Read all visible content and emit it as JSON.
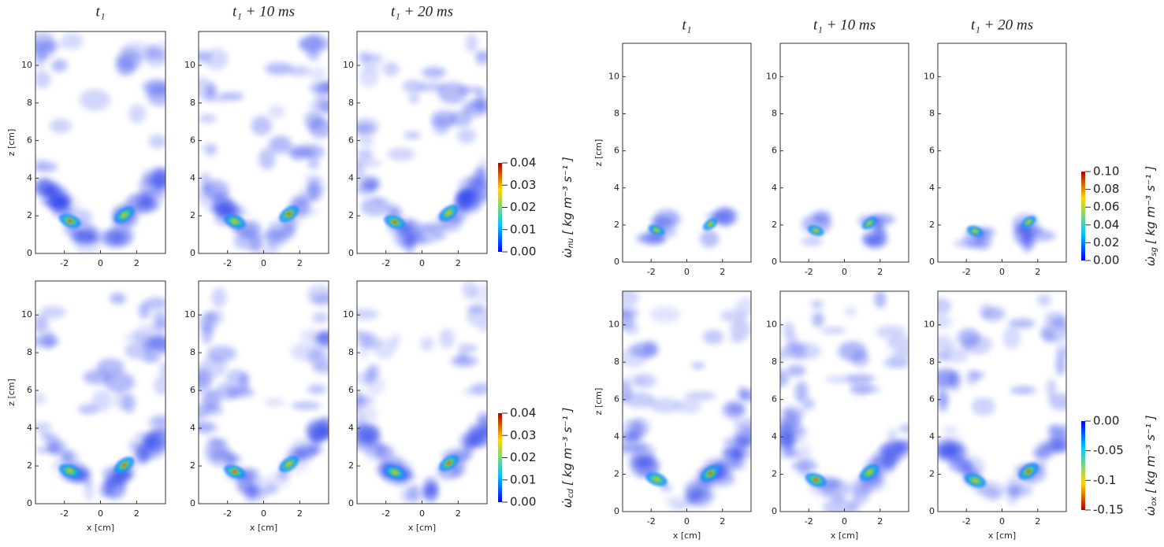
{
  "chart_data": [
    {
      "type": "heatmap",
      "panel_titles": [
        "t₁",
        "t₁ + 10 ms",
        "t₁ + 20 ms"
      ],
      "ylabel": "z [cm]",
      "xlim": [
        -3.6,
        3.6
      ],
      "ylim": [
        0,
        11.8
      ],
      "xticks": [
        -2,
        0,
        2
      ],
      "yticks": [
        0,
        2,
        4,
        6,
        8,
        10
      ],
      "colorbar": {
        "symbol": "ω̇",
        "subscript": "nu",
        "unit": "[ kg m⁻³ s⁻¹ ]",
        "lim": [
          0,
          0.04
        ],
        "ticks": [
          0.04,
          0.03,
          0.02,
          0.01,
          {
            "value": 0,
            "label": "0.00"
          }
        ],
        "reversed": false
      }
    },
    {
      "type": "heatmap",
      "xlabel": "x [cm]",
      "ylabel": "z [cm]",
      "xlim": [
        -3.6,
        3.6
      ],
      "ylim": [
        0,
        11.8
      ],
      "xticks": [
        -2,
        0,
        2
      ],
      "yticks": [
        0,
        2,
        4,
        6,
        8,
        10
      ],
      "colorbar": {
        "symbol": "ω̇",
        "subscript": "cd",
        "unit": "[ kg m⁻³ s⁻¹ ]",
        "lim": [
          0,
          0.04
        ],
        "ticks": [
          0.04,
          0.03,
          0.02,
          0.01,
          {
            "value": 0,
            "label": "0.00"
          }
        ],
        "reversed": false
      }
    },
    {
      "type": "heatmap",
      "panel_titles": [
        "t₁",
        "t₁ + 10 ms",
        "t₁ + 20 ms"
      ],
      "ylabel": "z [cm]",
      "xlim": [
        -3.6,
        3.6
      ],
      "ylim": [
        0,
        11.8
      ],
      "xticks": [
        -2,
        0,
        2
      ],
      "yticks": [
        0,
        2,
        4,
        6,
        8,
        10
      ],
      "colorbar": {
        "symbol": "ω̇",
        "subscript": "sg",
        "unit": "[ kg m⁻³ s⁻¹ ]",
        "lim": [
          0,
          0.1
        ],
        "ticks": [
          {
            "value": 0.1,
            "label": "0.10"
          },
          0.08,
          0.06,
          0.04,
          0.02,
          {
            "value": 0,
            "label": "0.00"
          }
        ],
        "reversed": false
      }
    },
    {
      "type": "heatmap",
      "xlabel": "x [cm]",
      "ylabel": "z [cm]",
      "xlim": [
        -3.6,
        3.6
      ],
      "ylim": [
        0,
        11.8
      ],
      "xticks": [
        -2,
        0,
        2
      ],
      "yticks": [
        0,
        2,
        4,
        6,
        8,
        10
      ],
      "colorbar": {
        "symbol": "ω̇",
        "subscript": "ox",
        "unit": "[ kg m⁻³ s⁻¹ ]",
        "lim": [
          -0.15,
          0
        ],
        "ticks": [
          {
            "value": 0,
            "label": "0.00"
          },
          -0.05,
          -0.1,
          -0.15
        ],
        "reversed": true
      }
    }
  ]
}
